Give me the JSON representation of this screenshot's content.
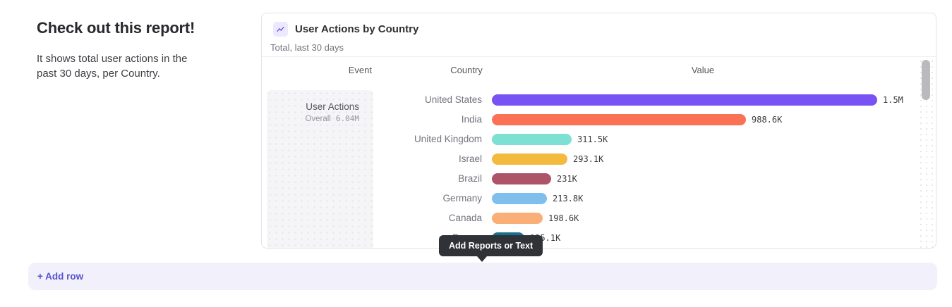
{
  "intro": {
    "title": "Check out this report!",
    "description_line1": "It shows total user actions in the",
    "description_line2": "past 30 days, per Country."
  },
  "report_card": {
    "title": "User Actions by Country",
    "subtitle": "Total, last 30 days",
    "icon": "line-chart-icon",
    "columns": {
      "event": "Event",
      "country": "Country",
      "value": "Value"
    },
    "event_panel": {
      "name": "User Actions",
      "overall_label": "Overall",
      "overall_value": "6.04M"
    }
  },
  "chart_data": {
    "type": "bar",
    "orientation": "horizontal",
    "title": "User Actions by Country",
    "subtitle": "Total, last 30 days",
    "series_name": "User Actions",
    "overall_total": "6.04M",
    "categories": [
      "United States",
      "India",
      "United Kingdom",
      "Israel",
      "Brazil",
      "Germany",
      "Canada",
      "France"
    ],
    "values": [
      1500000,
      988600,
      311500,
      293100,
      231000,
      213800,
      198600,
      125100
    ],
    "value_labels": [
      "1.5M",
      "988.6K",
      "311.5K",
      "293.1K",
      "231K",
      "213.8K",
      "198.6K",
      "125.1K"
    ],
    "bar_colors": [
      "#7852f2",
      "#fb7156",
      "#7ce0d3",
      "#f2bb40",
      "#ae5468",
      "#7fbfee",
      "#fbaf78",
      "#17708f"
    ],
    "xlim": [
      0,
      1500000
    ],
    "grid": false,
    "legend": false,
    "scroll": "vertical, more rows below"
  },
  "tooltip": {
    "text": "Add Reports or Text"
  },
  "add_row": {
    "label": "+ Add row"
  },
  "colors": {
    "accent_purple": "#5553ce",
    "tooltip_bg": "#2f3237",
    "card_border": "#e4e4e9",
    "panel_bg": "#f5f5f7",
    "add_row_bg": "#f2f1fb"
  }
}
